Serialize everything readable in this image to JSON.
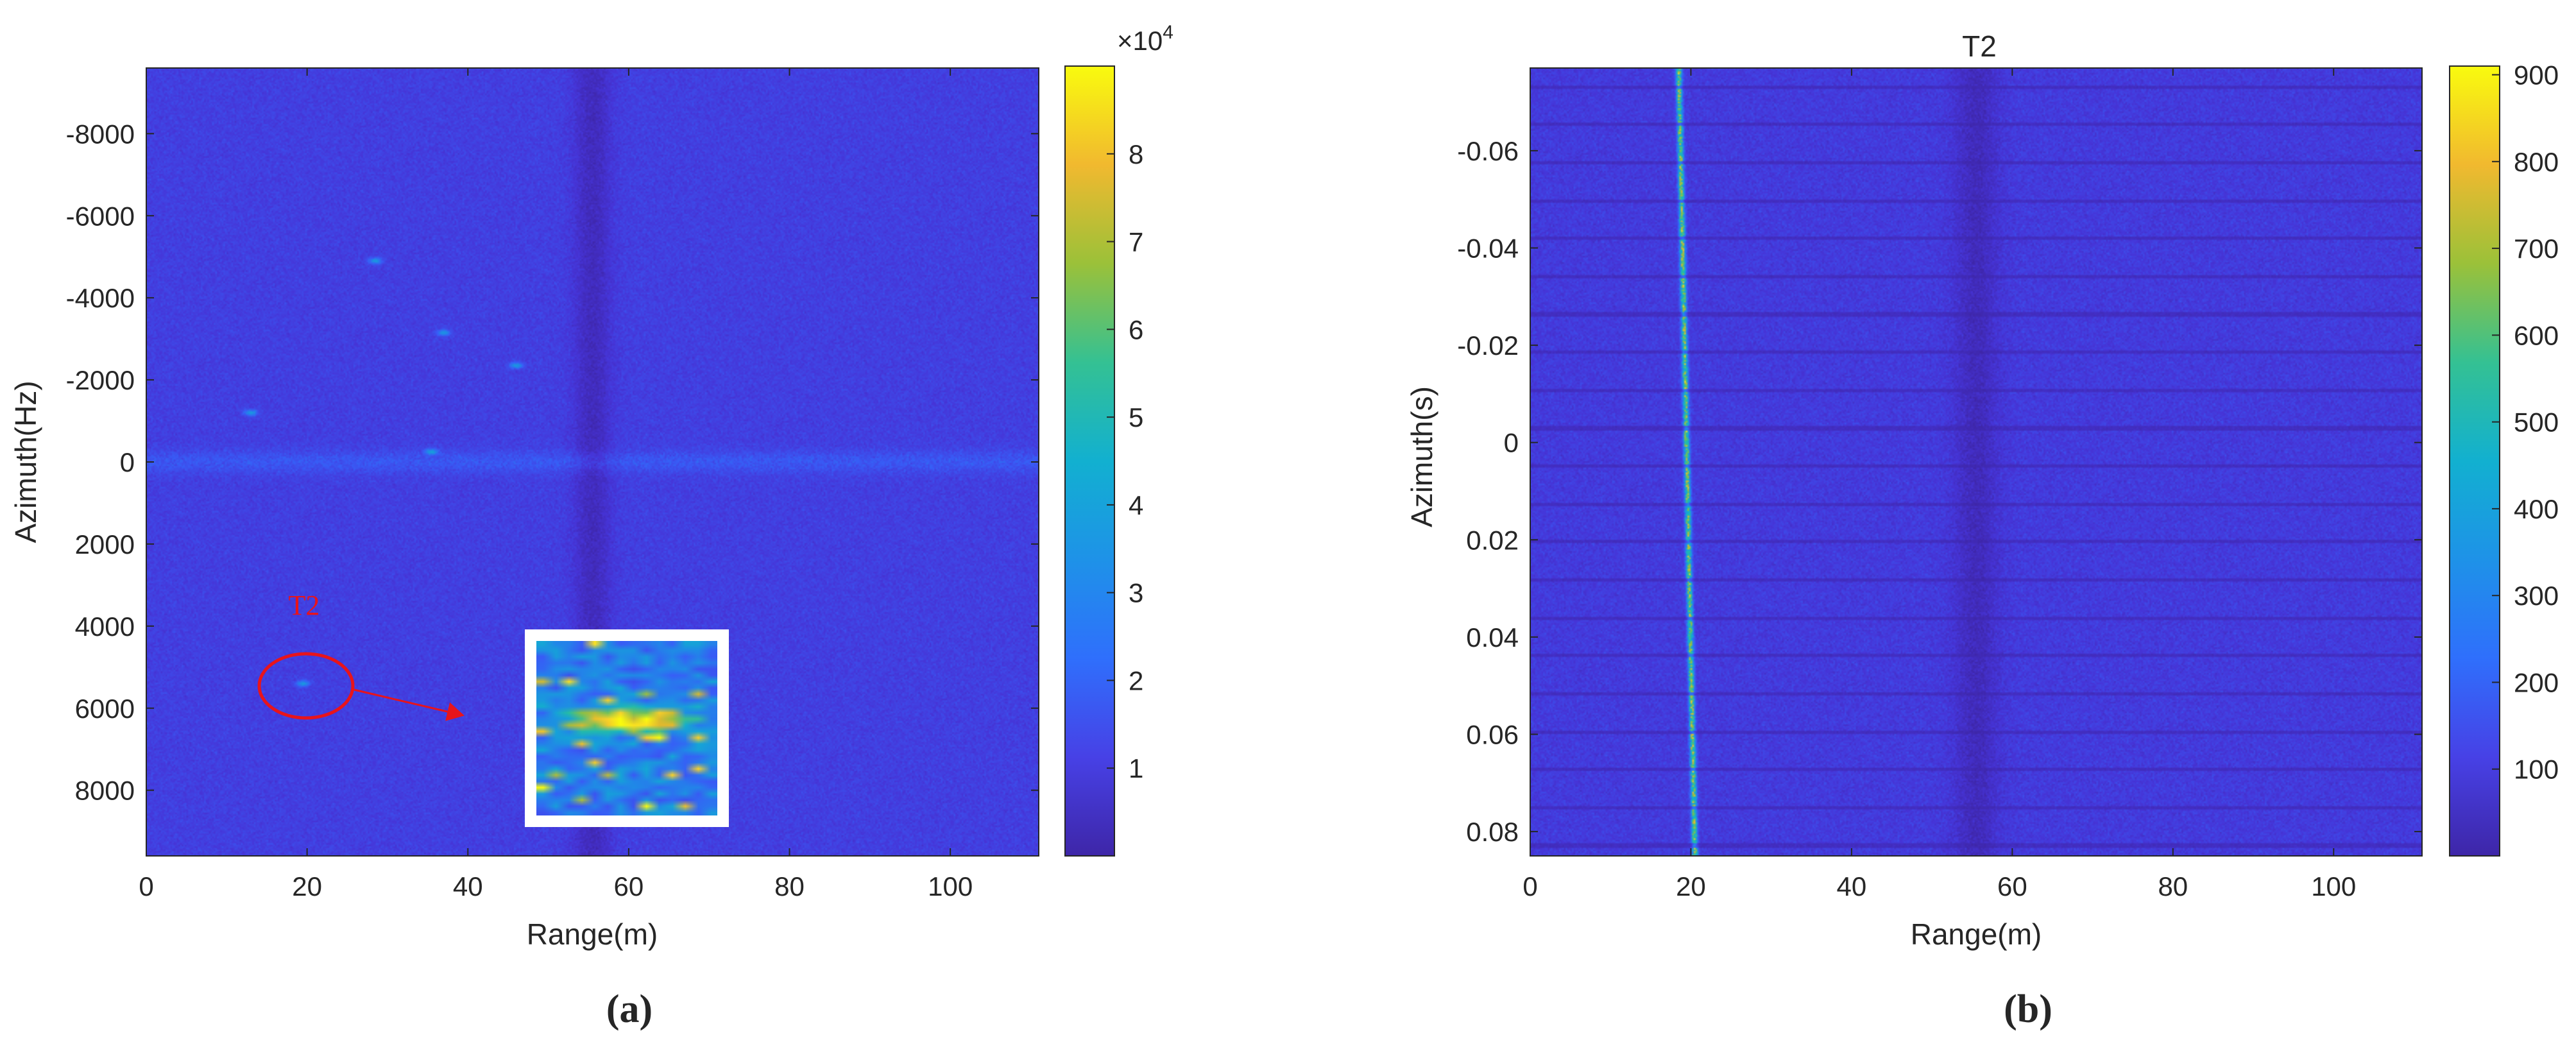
{
  "chart_data": [
    {
      "type": "heatmap",
      "panel_label": "(a)",
      "xlabel": "Range(m)",
      "ylabel": "Azimuth(Hz)",
      "xlim": [
        0,
        111
      ],
      "ylim": [
        -9600,
        9600
      ],
      "y_reversed": true,
      "x_ticks": [
        0,
        20,
        40,
        60,
        80,
        100
      ],
      "y_ticks": [
        -8000,
        -6000,
        -4000,
        -2000,
        0,
        2000,
        4000,
        6000,
        8000
      ],
      "colormap": "parula",
      "colorbar": {
        "min": 0,
        "max": 90000,
        "ticks": [
          1,
          2,
          3,
          4,
          5,
          6,
          7,
          8
        ],
        "exponent_label": "×10",
        "exponent": "4"
      },
      "features": {
        "background_level": 12000,
        "horizontal_band_azimuth": 0,
        "dark_vertical_band_range": 55.5,
        "bright_points": [
          {
            "range": 28.5,
            "azimuth": -4900
          },
          {
            "range": 37,
            "azimuth": -3150
          },
          {
            "range": 46,
            "azimuth": -2350
          },
          {
            "range": 13,
            "azimuth": -1200
          },
          {
            "range": 35.5,
            "azimuth": -250
          },
          {
            "range": 19.5,
            "azimuth": 5400
          }
        ]
      },
      "annotation": {
        "label": "T2",
        "target_range": 20,
        "target_azimuth": 5400
      }
    },
    {
      "type": "heatmap",
      "panel_label": "(b)",
      "title": "T2",
      "xlabel": "Range(m)",
      "ylabel": "Azimuth(s)",
      "xlim": [
        0,
        111
      ],
      "ylim": [
        -0.077,
        0.085
      ],
      "y_reversed": true,
      "x_ticks": [
        0,
        20,
        40,
        60,
        80,
        100
      ],
      "y_ticks": [
        -0.06,
        -0.04,
        -0.02,
        0,
        0.02,
        0.04,
        0.06,
        0.08
      ],
      "colormap": "parula",
      "colorbar": {
        "min": 0,
        "max": 910,
        "ticks": [
          100,
          200,
          300,
          400,
          500,
          600,
          700,
          800,
          900
        ]
      },
      "features": {
        "target_track": {
          "range_start": 18.5,
          "range_end": 20.5
        },
        "dark_vertical_band_range": 55.5,
        "dark_stripe_period_s": 0.0078
      }
    }
  ],
  "colors": {
    "parula_low": "#3e26a8",
    "parula_high": "#f9fb0e",
    "annotation_red": "#e8141b"
  }
}
